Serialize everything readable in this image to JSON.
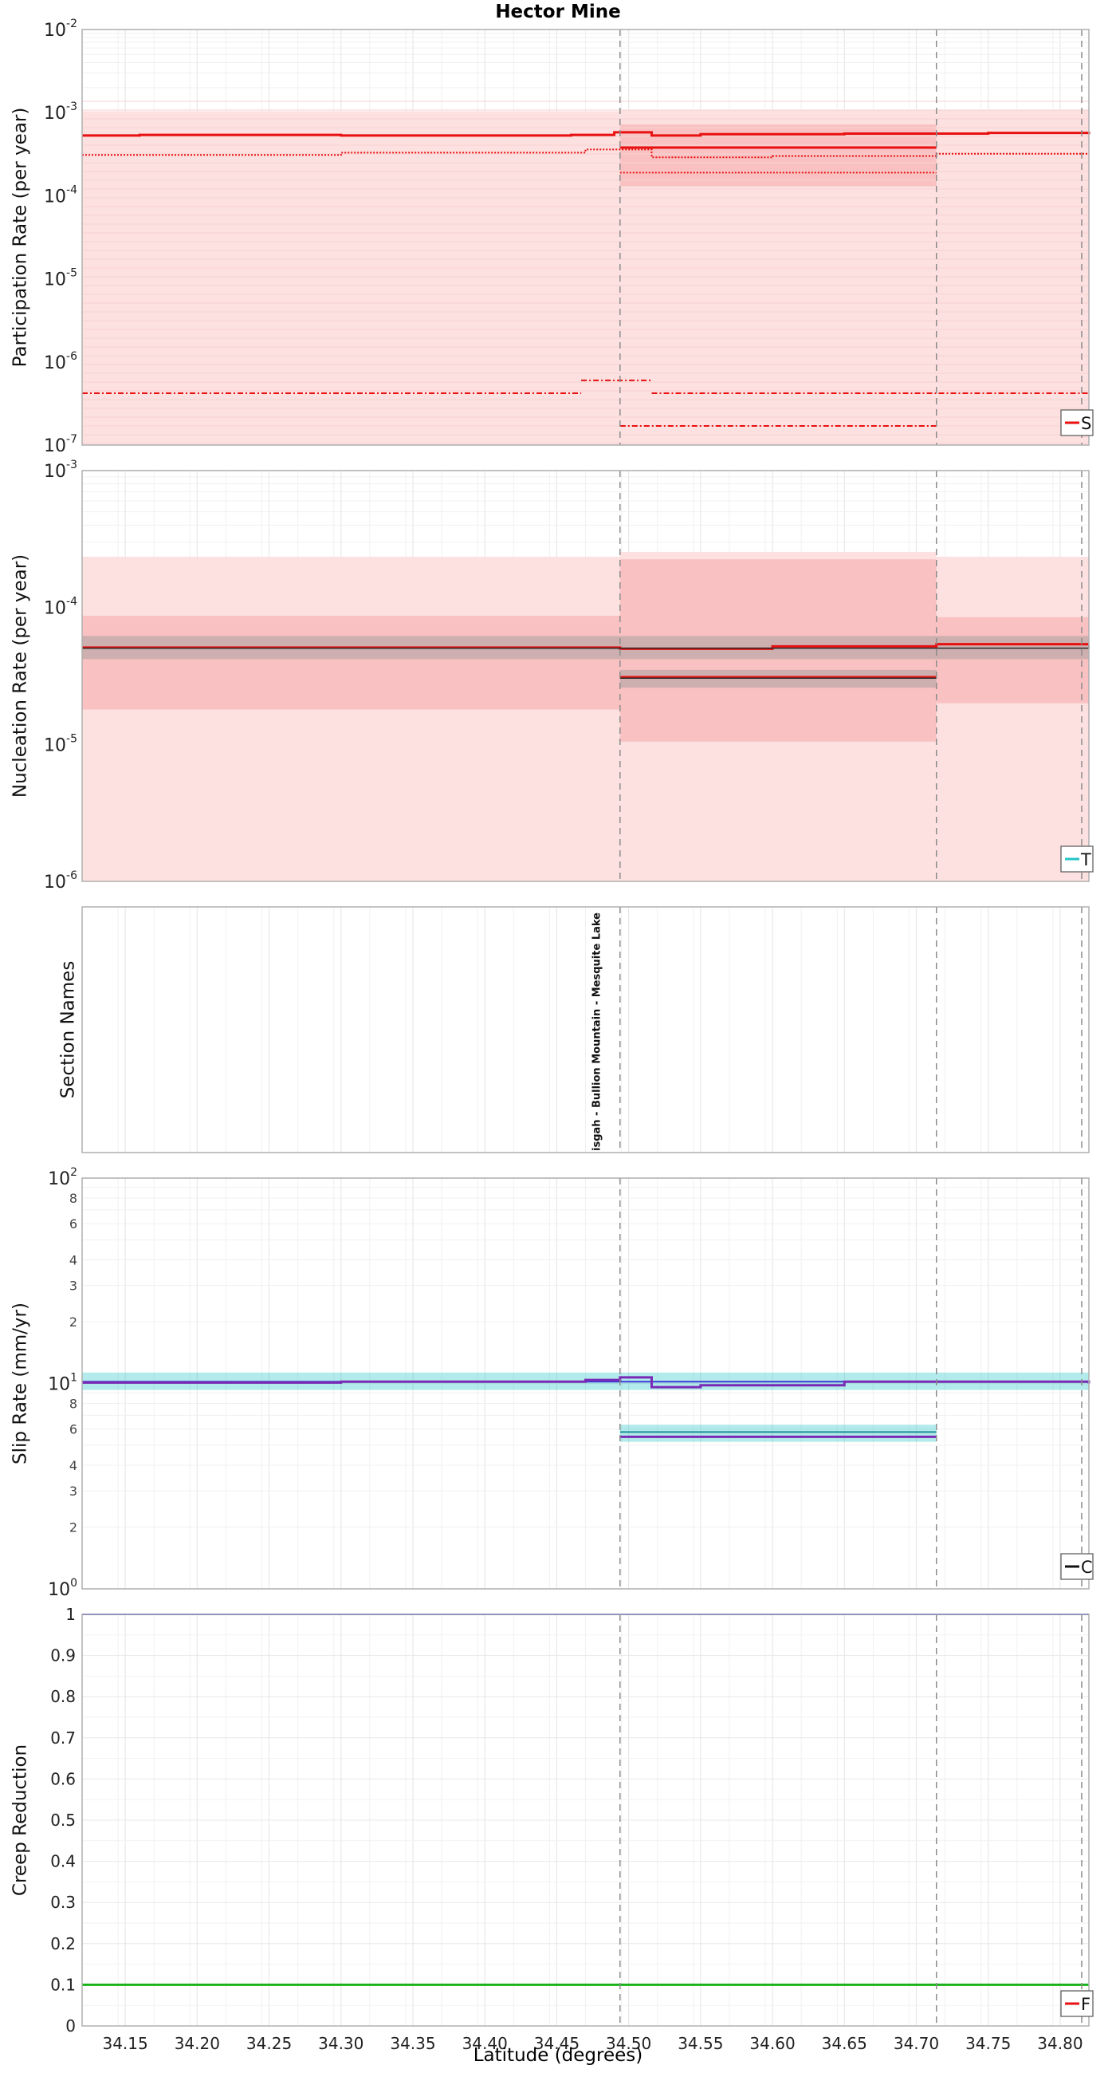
{
  "page_title": "Hector Mine",
  "x_axis": {
    "label": "Latitude (degrees)",
    "range": [
      34.12,
      34.82
    ],
    "ticks": [
      34.15,
      34.2,
      34.25,
      34.3,
      34.35,
      34.4,
      34.45,
      34.5,
      34.55,
      34.6,
      34.65,
      34.7,
      34.75,
      34.8
    ],
    "tick_labels": [
      "34.15",
      "34.20",
      "34.25",
      "34.30",
      "34.35",
      "34.40",
      "34.45",
      "34.50",
      "34.55",
      "34.60",
      "34.65",
      "34.70",
      "34.75",
      "34.80"
    ]
  },
  "section_boundaries": [
    34.494,
    34.714,
    34.815
  ],
  "section_names_label": "Section Names",
  "section_name_text": "isgah - Bullion Mountain - Mesquite Lake",
  "colors": {
    "red": "#e81010",
    "cyan": "#25c4c8",
    "purple": "#7a2bb5",
    "blue": "#3b3bd6",
    "green": "#19b319",
    "band_light": "#fde0e0",
    "band_mid": "#f9c4c4",
    "grid": "#e8e8e8",
    "boundary": "#8c8c8c"
  },
  "chart_data": [
    {
      "type": "line",
      "name": "participation",
      "ylabel": "Participation Rate (per year)",
      "yscale": "log",
      "ylim": [
        1e-07,
        0.01
      ],
      "y_ticks": [
        {
          "base": "10",
          "exp": "-7"
        },
        {
          "base": "10",
          "exp": "-6"
        },
        {
          "base": "10",
          "exp": "-5"
        },
        {
          "base": "10",
          "exp": "-4"
        },
        {
          "base": "10",
          "exp": "-3"
        },
        {
          "base": "10",
          "exp": "-2"
        }
      ],
      "legend_text": "S",
      "bands": [
        {
          "x": [
            34.12,
            34.494
          ],
          "y": [
            1e-07,
            0.00104
          ],
          "level": "light"
        },
        {
          "x": [
            34.494,
            34.714
          ],
          "y": [
            1e-07,
            0.00108
          ],
          "level": "light"
        },
        {
          "x": [
            34.714,
            34.82
          ],
          "y": [
            1e-07,
            0.00107
          ],
          "level": "light"
        },
        {
          "x": [
            34.494,
            34.714
          ],
          "y": [
            0.00013,
            0.00072
          ],
          "level": "mid"
        }
      ],
      "series": [
        {
          "style": "solid",
          "width": 3,
          "points": [
            [
              34.12,
              0.00053
            ],
            [
              34.16,
              0.00054
            ],
            [
              34.3,
              0.00053
            ],
            [
              34.46,
              0.00054
            ],
            [
              34.49,
              0.00058
            ],
            [
              34.516,
              0.00053
            ],
            [
              34.55,
              0.00055
            ],
            [
              34.65,
              0.00056
            ],
            [
              34.75,
              0.00057
            ],
            [
              34.82,
              0.00055
            ]
          ]
        },
        {
          "style": "solid",
          "width": 3,
          "points": [
            [
              34.494,
              0.00038
            ],
            [
              34.714,
              0.00038
            ]
          ]
        },
        {
          "style": "dotted",
          "width": 2,
          "points": [
            [
              34.12,
              0.00031
            ],
            [
              34.3,
              0.00033
            ],
            [
              34.47,
              0.00036
            ],
            [
              34.516,
              0.00029
            ],
            [
              34.6,
              0.0003
            ],
            [
              34.714,
              0.00032
            ],
            [
              34.82,
              0.00032
            ]
          ]
        },
        {
          "style": "dotted",
          "width": 2,
          "points": [
            [
              34.494,
              0.00019
            ],
            [
              34.714,
              0.00019
            ]
          ]
        },
        {
          "style": "dashdot",
          "width": 2,
          "points": [
            [
              34.12,
              4.2e-07
            ],
            [
              34.467,
              4.2e-07
            ]
          ]
        },
        {
          "style": "dashdot",
          "width": 2,
          "points": [
            [
              34.467,
              6e-07
            ],
            [
              34.516,
              6e-07
            ]
          ]
        },
        {
          "style": "dashdot",
          "width": 2,
          "points": [
            [
              34.516,
              4.2e-07
            ],
            [
              34.82,
              4.2e-07
            ]
          ]
        },
        {
          "style": "dashdot",
          "width": 2,
          "points": [
            [
              34.494,
              1.7e-07
            ],
            [
              34.714,
              1.7e-07
            ]
          ]
        }
      ]
    },
    {
      "type": "line",
      "name": "nucleation",
      "ylabel": "Nucleation Rate (per year)",
      "yscale": "log",
      "ylim": [
        1e-06,
        0.001
      ],
      "y_ticks": [
        {
          "base": "10",
          "exp": "-6"
        },
        {
          "base": "10",
          "exp": "-5"
        },
        {
          "base": "10",
          "exp": "-4"
        },
        {
          "base": "10",
          "exp": "-3"
        }
      ],
      "legend_text": "T",
      "bands": [
        {
          "x": [
            34.12,
            34.494
          ],
          "y": [
            1e-06,
            0.000235
          ],
          "level": "light"
        },
        {
          "x": [
            34.494,
            34.714
          ],
          "y": [
            1e-06,
            0.000255
          ],
          "level": "light"
        },
        {
          "x": [
            34.714,
            34.82
          ],
          "y": [
            1e-06,
            0.000235
          ],
          "level": "light"
        },
        {
          "x": [
            34.12,
            34.494
          ],
          "y": [
            1.8e-05,
            8.7e-05
          ],
          "level": "mid"
        },
        {
          "x": [
            34.494,
            34.714
          ],
          "y": [
            1.05e-05,
            0.000225
          ],
          "level": "mid"
        },
        {
          "x": [
            34.714,
            34.82
          ],
          "y": [
            2e-05,
            8.5e-05
          ],
          "level": "mid"
        },
        {
          "x": [
            34.12,
            34.82
          ],
          "y": [
            4.2e-05,
            6.2e-05
          ],
          "level": "gray"
        },
        {
          "x": [
            34.494,
            34.714
          ],
          "y": [
            2.6e-05,
            3.5e-05
          ],
          "level": "gray"
        }
      ],
      "series": [
        {
          "style": "solid",
          "width": 3,
          "color": "red",
          "points": [
            [
              34.12,
              5.1e-05
            ],
            [
              34.3,
              5.1e-05
            ],
            [
              34.494,
              5e-05
            ],
            [
              34.6,
              5.2e-05
            ],
            [
              34.714,
              5.4e-05
            ],
            [
              34.82,
              5.4e-05
            ]
          ]
        },
        {
          "style": "solid",
          "width": 3,
          "color": "red",
          "points": [
            [
              34.494,
              3.1e-05
            ],
            [
              34.714,
              3.1e-05
            ]
          ]
        },
        {
          "style": "solid",
          "width": 1.5,
          "color": "black",
          "points": [
            [
              34.12,
              5.05e-05
            ],
            [
              34.82,
              5.3e-05
            ]
          ]
        },
        {
          "style": "solid",
          "width": 1.5,
          "color": "black",
          "points": [
            [
              34.494,
              3.05e-05
            ],
            [
              34.714,
              3.05e-05
            ]
          ]
        }
      ]
    },
    {
      "type": "line",
      "name": "slip",
      "ylabel": "Slip Rate (mm/yr)",
      "yscale": "log",
      "ylim": [
        1,
        100
      ],
      "y_ticks": [
        {
          "base": "10",
          "exp": "0"
        },
        {
          "base": "10",
          "exp": "1"
        },
        {
          "base": "10",
          "exp": "2"
        }
      ],
      "minor_ticks": [
        2,
        3,
        4,
        6,
        8,
        20,
        30,
        40,
        60,
        80
      ],
      "legend_text": "C",
      "bands": [
        {
          "x": [
            34.12,
            34.82
          ],
          "y": [
            9.3,
            11.3
          ],
          "level": "cyan"
        },
        {
          "x": [
            34.494,
            34.714
          ],
          "y": [
            5.2,
            6.3
          ],
          "level": "cyan"
        }
      ],
      "series": [
        {
          "style": "solid",
          "width": 2,
          "color": "blue",
          "points": [
            [
              34.12,
              10.2
            ],
            [
              34.82,
              10.3
            ]
          ]
        },
        {
          "style": "solid",
          "width": 3,
          "color": "purple",
          "points": [
            [
              34.12,
              10.1
            ],
            [
              34.3,
              10.2
            ],
            [
              34.47,
              10.4
            ],
            [
              34.494,
              10.7
            ],
            [
              34.516,
              9.6
            ],
            [
              34.55,
              9.8
            ],
            [
              34.65,
              10.2
            ],
            [
              34.75,
              10.2
            ],
            [
              34.82,
              10.0
            ]
          ]
        },
        {
          "style": "solid",
          "width": 3,
          "color": "purple",
          "points": [
            [
              34.494,
              5.5
            ],
            [
              34.714,
              5.5
            ]
          ]
        },
        {
          "style": "solid",
          "width": 2,
          "color": "teal",
          "points": [
            [
              34.494,
              5.8
            ],
            [
              34.714,
              5.8
            ]
          ]
        }
      ]
    },
    {
      "type": "line",
      "name": "creep",
      "ylabel": "Creep Reduction",
      "yscale": "linear",
      "ylim": [
        0,
        1
      ],
      "y_ticks": [
        "0",
        "0.1",
        "0.2",
        "0.3",
        "0.4",
        "0.5",
        "0.6",
        "0.7",
        "0.8",
        "0.9",
        "1"
      ],
      "legend_text": "F",
      "series": [
        {
          "style": "solid",
          "width": 2,
          "color": "blue",
          "points": [
            [
              34.12,
              1.0
            ],
            [
              34.82,
              1.0
            ]
          ]
        },
        {
          "style": "solid",
          "width": 3,
          "color": "green",
          "points": [
            [
              34.12,
              0.1
            ],
            [
              34.82,
              0.1
            ]
          ]
        }
      ]
    }
  ]
}
